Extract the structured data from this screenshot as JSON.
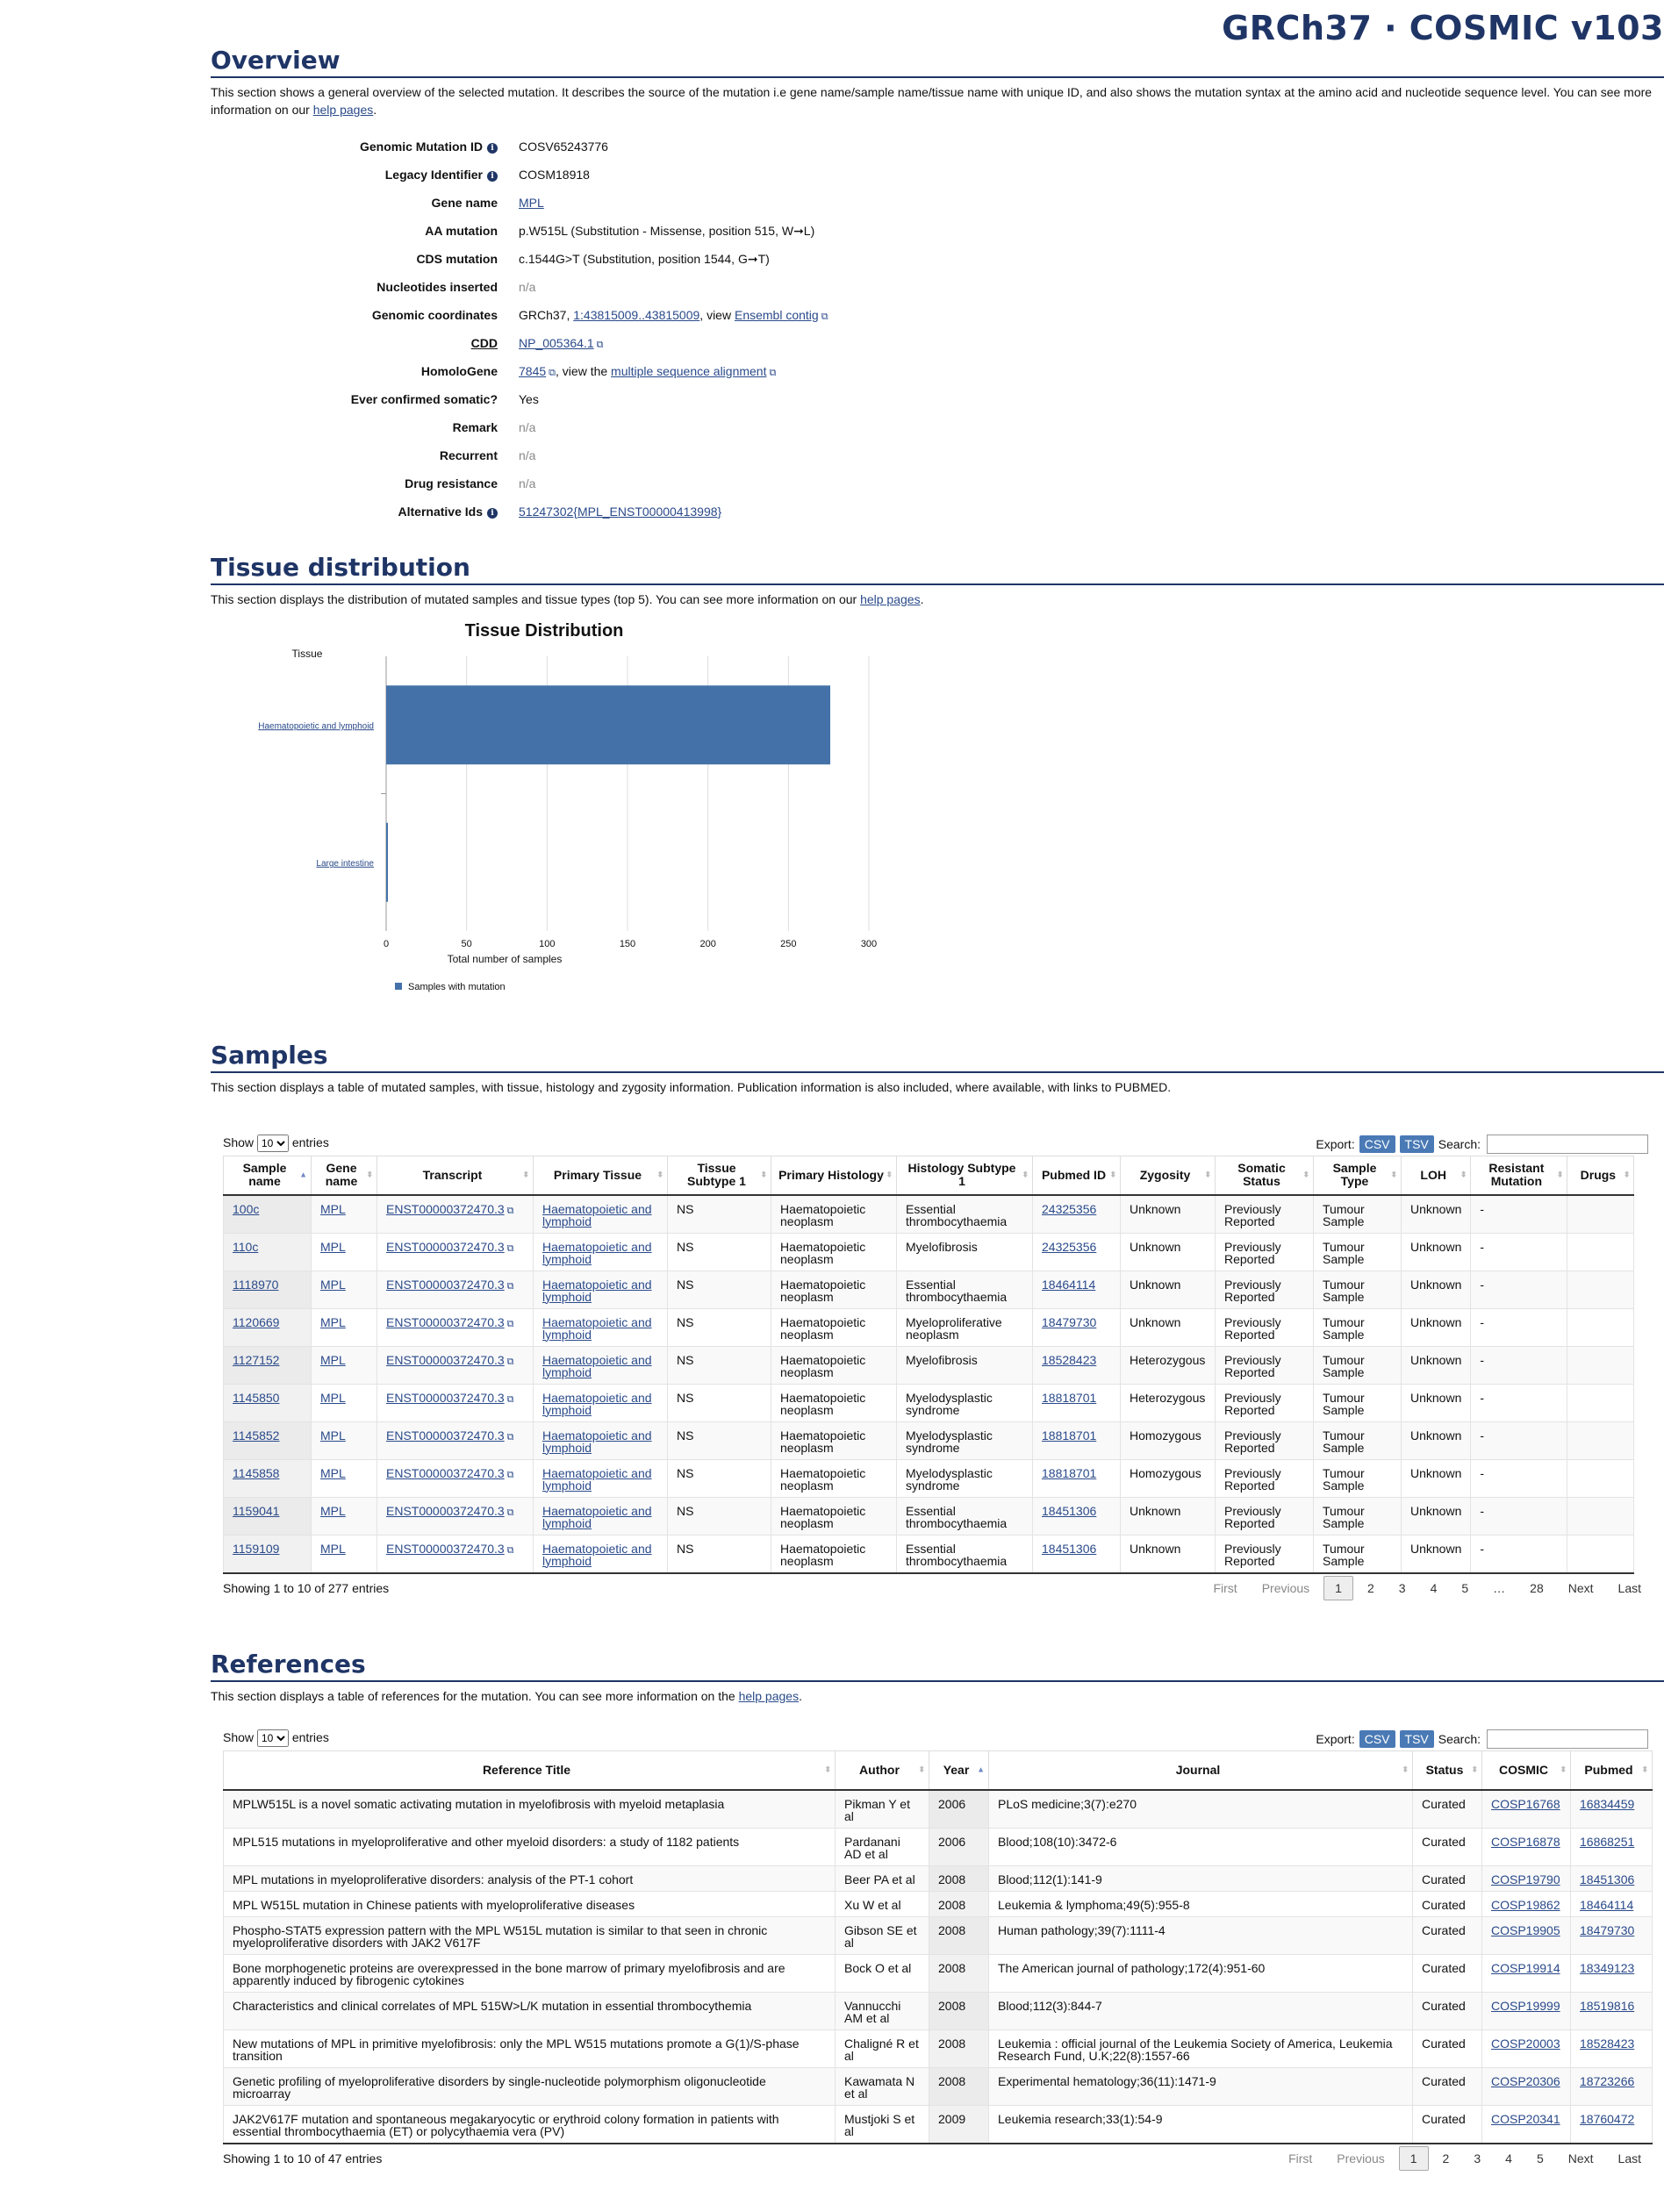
{
  "header": {
    "title": "GRCh37 · COSMIC v103"
  },
  "overview": {
    "heading": "Overview",
    "desc_pre": "This section shows a general overview of the selected mutation. It describes the source of the mutation i.e gene name/sample name/tissue name with unique ID, and also shows the mutation syntax at the amino acid and nucleotide sequence level. You can see more information on our ",
    "desc_link": "help pages",
    "desc_post": ".",
    "genomic_mutation_id": {
      "label": "Genomic Mutation ID",
      "value": "COSV65243776"
    },
    "legacy_identifier": {
      "label": "Legacy Identifier",
      "value": "COSM18918"
    },
    "gene_name": {
      "label": "Gene name",
      "value": "MPL"
    },
    "aa_mutation": {
      "label": "AA mutation",
      "value": "p.W515L (Substitution - Missense, position 515, W➞L)"
    },
    "cds_mutation": {
      "label": "CDS mutation",
      "value": "c.1544G>T (Substitution, position 1544, G➞T)"
    },
    "nucleotides_inserted": {
      "label": "Nucleotides inserted",
      "value": "n/a"
    },
    "genomic_coordinates": {
      "label": "Genomic coordinates",
      "prefix": "GRCh37, ",
      "link": "1:43815009..43815009",
      "mid": ", view ",
      "link2": "Ensembl contig"
    },
    "cdd": {
      "label": "CDD",
      "value": "NP_005364.1"
    },
    "homologene": {
      "label": "HomoloGene",
      "link": "7845",
      "mid": ", view the ",
      "link2": "multiple sequence alignment"
    },
    "ever_confirmed_somatic": {
      "label": "Ever confirmed somatic?",
      "value": "Yes"
    },
    "remark": {
      "label": "Remark",
      "value": "n/a"
    },
    "recurrent": {
      "label": "Recurrent",
      "value": "n/a"
    },
    "drug_resistance": {
      "label": "Drug resistance",
      "value": "n/a"
    },
    "alternative_ids": {
      "label": "Alternative Ids",
      "value": "51247302{MPL_ENST00000413998}"
    }
  },
  "tissue": {
    "heading": "Tissue distribution",
    "desc_pre": "This section displays the distribution of mutated samples and tissue types (top 5). You can see more information on our ",
    "desc_link": "help pages",
    "desc_post": "."
  },
  "chart_data": {
    "type": "bar",
    "orientation": "horizontal",
    "title": "Tissue Distribution",
    "ylabel": "Tissue",
    "xlabel": "Total number of samples",
    "categories": [
      "Haematopoietic and lymphoid",
      "Large intestine"
    ],
    "series": [
      {
        "name": "Samples with mutation",
        "values": [
          276,
          1
        ],
        "color": "#4472a8"
      }
    ],
    "xlim": [
      0,
      300
    ],
    "xticks": [
      0,
      50,
      100,
      150,
      200,
      250,
      300
    ],
    "grid": true,
    "legend": "bottom-left"
  },
  "samples": {
    "heading": "Samples",
    "desc": "This section displays a table of mutated samples, with tissue, histology and zygosity information. Publication information is also included, where available, with links to PUBMED.",
    "show": "Show",
    "entries_value": "10",
    "entries": "entries",
    "export": "Export:",
    "csv": "CSV",
    "tsv": "TSV",
    "search": "Search:",
    "columns": [
      "Sample name",
      "Gene name",
      "Transcript",
      "Primary Tissue",
      "Tissue Subtype 1",
      "Primary Histology",
      "Histology Subtype 1",
      "Pubmed ID",
      "Zygosity",
      "Somatic Status",
      "Sample Type",
      "LOH",
      "Resistant Mutation",
      "Drugs"
    ],
    "rows": [
      [
        "100c",
        "MPL",
        "ENST00000372470.3",
        "Haematopoietic and lymphoid",
        "NS",
        "Haematopoietic neoplasm",
        "Essential thrombocythaemia",
        "24325356",
        "Unknown",
        "Previously Reported",
        "Tumour Sample",
        "Unknown",
        "-",
        ""
      ],
      [
        "110c",
        "MPL",
        "ENST00000372470.3",
        "Haematopoietic and lymphoid",
        "NS",
        "Haematopoietic neoplasm",
        "Myelofibrosis",
        "24325356",
        "Unknown",
        "Previously Reported",
        "Tumour Sample",
        "Unknown",
        "-",
        ""
      ],
      [
        "1118970",
        "MPL",
        "ENST00000372470.3",
        "Haematopoietic and lymphoid",
        "NS",
        "Haematopoietic neoplasm",
        "Essential thrombocythaemia",
        "18464114",
        "Unknown",
        "Previously Reported",
        "Tumour Sample",
        "Unknown",
        "-",
        ""
      ],
      [
        "1120669",
        "MPL",
        "ENST00000372470.3",
        "Haematopoietic and lymphoid",
        "NS",
        "Haematopoietic neoplasm",
        "Myeloproliferative neoplasm",
        "18479730",
        "Unknown",
        "Previously Reported",
        "Tumour Sample",
        "Unknown",
        "-",
        ""
      ],
      [
        "1127152",
        "MPL",
        "ENST00000372470.3",
        "Haematopoietic and lymphoid",
        "NS",
        "Haematopoietic neoplasm",
        "Myelofibrosis",
        "18528423",
        "Heterozygous",
        "Previously Reported",
        "Tumour Sample",
        "Unknown",
        "-",
        ""
      ],
      [
        "1145850",
        "MPL",
        "ENST00000372470.3",
        "Haematopoietic and lymphoid",
        "NS",
        "Haematopoietic neoplasm",
        "Myelodysplastic syndrome",
        "18818701",
        "Heterozygous",
        "Previously Reported",
        "Tumour Sample",
        "Unknown",
        "-",
        ""
      ],
      [
        "1145852",
        "MPL",
        "ENST00000372470.3",
        "Haematopoietic and lymphoid",
        "NS",
        "Haematopoietic neoplasm",
        "Myelodysplastic syndrome",
        "18818701",
        "Homozygous",
        "Previously Reported",
        "Tumour Sample",
        "Unknown",
        "-",
        ""
      ],
      [
        "1145858",
        "MPL",
        "ENST00000372470.3",
        "Haematopoietic and lymphoid",
        "NS",
        "Haematopoietic neoplasm",
        "Myelodysplastic syndrome",
        "18818701",
        "Homozygous",
        "Previously Reported",
        "Tumour Sample",
        "Unknown",
        "-",
        ""
      ],
      [
        "1159041",
        "MPL",
        "ENST00000372470.3",
        "Haematopoietic and lymphoid",
        "NS",
        "Haematopoietic neoplasm",
        "Essential thrombocythaemia",
        "18451306",
        "Unknown",
        "Previously Reported",
        "Tumour Sample",
        "Unknown",
        "-",
        ""
      ],
      [
        "1159109",
        "MPL",
        "ENST00000372470.3",
        "Haematopoietic and lymphoid",
        "NS",
        "Haematopoietic neoplasm",
        "Essential thrombocythaemia",
        "18451306",
        "Unknown",
        "Previously Reported",
        "Tumour Sample",
        "Unknown",
        "-",
        ""
      ]
    ],
    "info": "Showing 1 to 10 of 277 entries",
    "pager": [
      "First",
      "Previous",
      "1",
      "2",
      "3",
      "4",
      "5",
      "…",
      "28",
      "Next",
      "Last"
    ]
  },
  "references": {
    "heading": "References",
    "desc_pre": "This section displays a table of references for the mutation. You can see more information on the ",
    "desc_link": "help pages",
    "desc_post": ".",
    "show": "Show",
    "entries_value": "10",
    "entries": "entries",
    "export": "Export:",
    "csv": "CSV",
    "tsv": "TSV",
    "search": "Search:",
    "columns": [
      "Reference Title",
      "Author",
      "Year",
      "Journal",
      "Status",
      "COSMIC",
      "Pubmed"
    ],
    "rows": [
      [
        "MPLW515L is a novel somatic activating mutation in myelofibrosis with myeloid metaplasia",
        "Pikman Y et al",
        "2006",
        "PLoS medicine;3(7):e270",
        "Curated",
        "COSP16768",
        "16834459"
      ],
      [
        "MPL515 mutations in myeloproliferative and other myeloid disorders: a study of 1182 patients",
        "Pardanani AD et al",
        "2006",
        "Blood;108(10):3472-6",
        "Curated",
        "COSP16878",
        "16868251"
      ],
      [
        "MPL mutations in myeloproliferative disorders: analysis of the PT-1 cohort",
        "Beer PA et al",
        "2008",
        "Blood;112(1):141-9",
        "Curated",
        "COSP19790",
        "18451306"
      ],
      [
        "MPL W515L mutation in Chinese patients with myeloproliferative diseases",
        "Xu W et al",
        "2008",
        "Leukemia & lymphoma;49(5):955-8",
        "Curated",
        "COSP19862",
        "18464114"
      ],
      [
        "Phospho-STAT5 expression pattern with the MPL W515L mutation is similar to that seen in chronic myeloproliferative disorders with JAK2 V617F",
        "Gibson SE et al",
        "2008",
        "Human pathology;39(7):1111-4",
        "Curated",
        "COSP19905",
        "18479730"
      ],
      [
        "Bone morphogenetic proteins are overexpressed in the bone marrow of primary myelofibrosis and are apparently induced by fibrogenic cytokines",
        "Bock O et al",
        "2008",
        "The American journal of pathology;172(4):951-60",
        "Curated",
        "COSP19914",
        "18349123"
      ],
      [
        "Characteristics and clinical correlates of MPL 515W>L/K mutation in essential thrombocythemia",
        "Vannucchi AM et al",
        "2008",
        "Blood;112(3):844-7",
        "Curated",
        "COSP19999",
        "18519816"
      ],
      [
        "New mutations of MPL in primitive myelofibrosis: only the MPL W515 mutations promote a G(1)/S-phase transition",
        "Chaligné R et al",
        "2008",
        "Leukemia : official journal of the Leukemia Society of America, Leukemia Research Fund, U.K;22(8):1557-66",
        "Curated",
        "COSP20003",
        "18528423"
      ],
      [
        "Genetic profiling of myeloproliferative disorders by single-nucleotide polymorphism oligonucleotide microarray",
        "Kawamata N et al",
        "2008",
        "Experimental hematology;36(11):1471-9",
        "Curated",
        "COSP20306",
        "18723266"
      ],
      [
        "JAK2V617F mutation and spontaneous megakaryocytic or erythroid colony formation in patients with essential thrombocythaemia (ET) or polycythaemia vera (PV)",
        "Mustjoki S et al",
        "2009",
        "Leukemia research;33(1):54-9",
        "Curated",
        "COSP20341",
        "18760472"
      ]
    ],
    "info": "Showing 1 to 10 of 47 entries",
    "pager": [
      "First",
      "Previous",
      "1",
      "2",
      "3",
      "4",
      "5",
      "Next",
      "Last"
    ]
  }
}
